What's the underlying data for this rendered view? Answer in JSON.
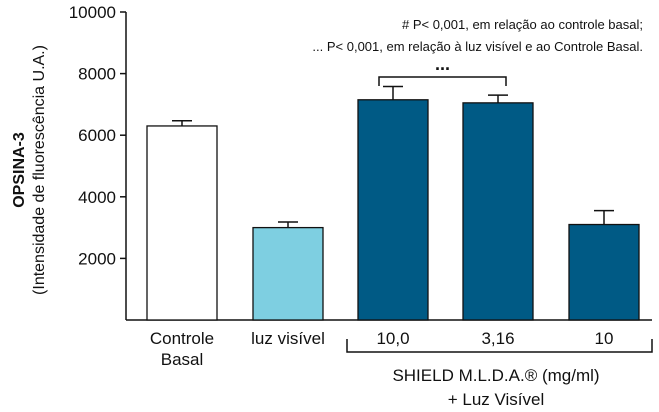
{
  "chart_data": {
    "type": "bar",
    "categories": [
      [
        "Controle",
        "Basal"
      ],
      [
        "luz visível"
      ],
      [
        "10,0"
      ],
      [
        "3,16"
      ],
      [
        "10"
      ]
    ],
    "values": [
      6300,
      3000,
      7150,
      7050,
      3100
    ],
    "errors": [
      170,
      180,
      430,
      250,
      450
    ],
    "bar_colors": [
      "#ffffff",
      "#7ecfe1",
      "#005a85",
      "#005a85",
      "#005a85"
    ],
    "ylim": [
      0,
      10000
    ],
    "yticks": [
      2000,
      4000,
      6000,
      8000,
      10000
    ],
    "ylabel": "OPSINA-3",
    "ylabel_sub": "(Intensidade de fluorescência U.A.)",
    "group_label_line1": "SHIELD M.L.D.A.® (mg/ml)",
    "group_label_line2": "+ Luz Visível",
    "notes": [
      "# P< 0,001, em relação ao controle basal;",
      "... P< 0,001, em relação à luz visível e ao Controle Basal."
    ],
    "significance_marker": "...",
    "grid": false,
    "legend": "none"
  }
}
